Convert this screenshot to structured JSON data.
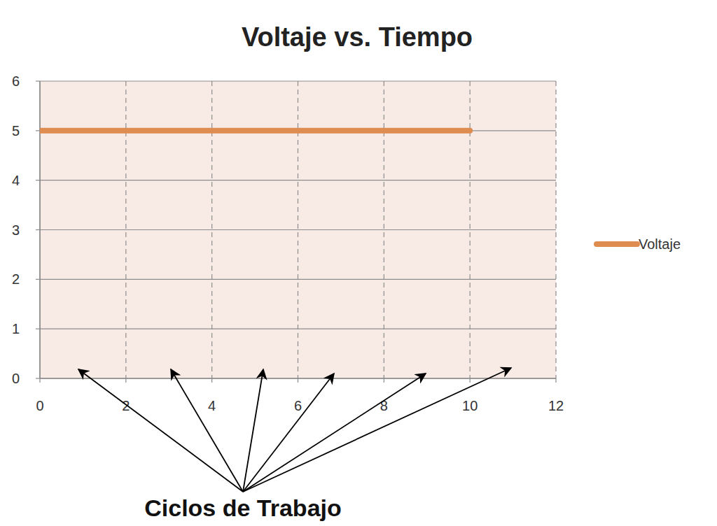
{
  "chart_data": {
    "type": "line",
    "title": "Voltaje vs. Tiempo",
    "x": [
      0,
      10
    ],
    "series": [
      {
        "name": "Voltaje",
        "color": "#de8c50",
        "values": [
          5,
          5
        ]
      }
    ],
    "xlim": [
      0,
      12
    ],
    "xticks": [
      0,
      2,
      4,
      6,
      8,
      10,
      12
    ],
    "ylim": [
      0,
      6
    ],
    "yticks": [
      0,
      1,
      2,
      3,
      4,
      5,
      6
    ],
    "grid": true,
    "legend": "right",
    "annotation": "Ciclos de Trabajo"
  }
}
